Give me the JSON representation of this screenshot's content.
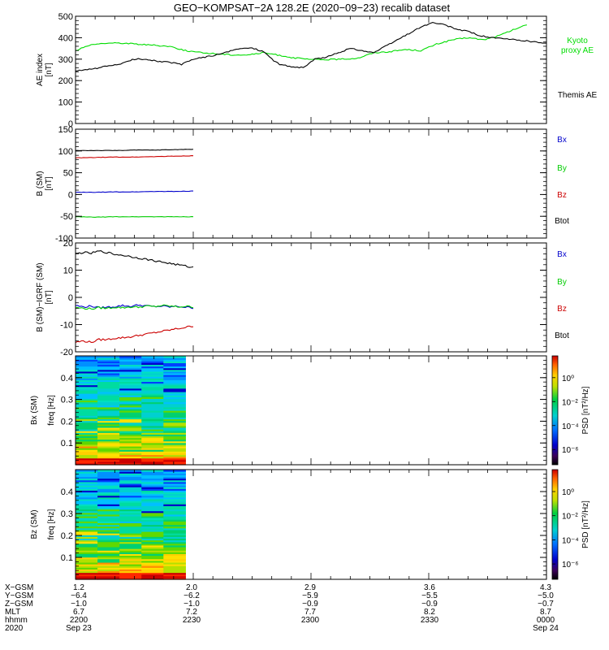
{
  "figure": {
    "title": "GEO−KOMPSAT−2A 128.2E (2020−09−23) recalib dataset"
  },
  "chart_data": [
    {
      "type": "line",
      "panel": "ae",
      "ylabel": [
        "AE index",
        "[nT]"
      ],
      "ylim": [
        0,
        500
      ],
      "yticks": [
        0,
        100,
        200,
        300,
        400,
        500
      ],
      "xlim_minutes": [
        0,
        120
      ],
      "legend": [
        "Kyoto",
        "proxy AE",
        "Themis AE"
      ],
      "series": [
        {
          "name": "Kyoto proxy AE",
          "color": "#00dd00",
          "x": [
            0,
            2,
            5,
            8,
            12,
            16,
            20,
            24,
            28,
            32,
            36,
            40,
            44,
            48,
            52,
            56,
            60,
            64,
            68,
            72,
            76,
            80,
            84,
            88,
            92,
            96,
            100,
            104,
            108,
            112,
            115
          ],
          "y": [
            340,
            355,
            370,
            375,
            375,
            370,
            365,
            360,
            340,
            330,
            325,
            320,
            320,
            330,
            318,
            305,
            298,
            298,
            300,
            305,
            330,
            335,
            345,
            340,
            370,
            390,
            400,
            390,
            410,
            440,
            460
          ]
        },
        {
          "name": "Themis AE",
          "color": "#000000",
          "x": [
            0,
            3,
            6,
            9,
            12,
            15,
            18,
            21,
            24,
            27,
            30,
            33,
            36,
            39,
            42,
            45,
            48,
            50,
            52,
            55,
            58,
            61,
            64,
            67,
            70,
            73,
            76,
            79,
            82,
            85,
            88,
            91,
            94,
            97,
            100,
            103,
            106,
            109,
            112,
            115,
            118,
            120
          ],
          "y": [
            245,
            250,
            260,
            270,
            280,
            300,
            300,
            290,
            285,
            275,
            300,
            310,
            320,
            335,
            350,
            352,
            335,
            300,
            275,
            265,
            260,
            300,
            310,
            330,
            350,
            340,
            330,
            360,
            390,
            420,
            450,
            470,
            460,
            440,
            430,
            410,
            400,
            395,
            390,
            385,
            378,
            372
          ]
        }
      ]
    },
    {
      "type": "line",
      "panel": "b_sm",
      "ylabel": [
        "B (SM)",
        "[nT]"
      ],
      "ylim": [
        -100,
        150
      ],
      "yticks": [
        -100,
        -50,
        0,
        50,
        100,
        150
      ],
      "xlim_minutes": [
        0,
        120
      ],
      "legend": [
        "Bx",
        "By",
        "Bz",
        "Btot"
      ],
      "series": [
        {
          "name": "Btot",
          "color": "#000000",
          "x": [
            0,
            5,
            10,
            15,
            20,
            25,
            30
          ],
          "y": [
            101,
            101,
            101,
            102,
            102,
            103,
            104
          ]
        },
        {
          "name": "Bz",
          "color": "#cc0000",
          "x": [
            0,
            5,
            10,
            15,
            20,
            25,
            30
          ],
          "y": [
            84,
            85,
            86,
            86,
            87,
            88,
            89
          ]
        },
        {
          "name": "Bx",
          "color": "#0000cc",
          "x": [
            0,
            5,
            10,
            15,
            20,
            25,
            30
          ],
          "y": [
            5,
            5,
            6,
            6,
            7,
            7,
            8
          ]
        },
        {
          "name": "By",
          "color": "#00cc00",
          "x": [
            0,
            5,
            10,
            15,
            20,
            25,
            30
          ],
          "y": [
            -51,
            -52,
            -51,
            -51,
            -51,
            -51,
            -51
          ]
        }
      ]
    },
    {
      "type": "line",
      "panel": "b_igrf",
      "ylabel": [
        "B (SM)−IGRF (SM)",
        "[nT]"
      ],
      "ylim": [
        -20,
        20
      ],
      "yticks": [
        -20,
        -10,
        0,
        10,
        20
      ],
      "xlim_minutes": [
        0,
        120
      ],
      "legend": [
        "Bx",
        "By",
        "Bz",
        "Btot"
      ],
      "series": [
        {
          "name": "Btot",
          "color": "#000000",
          "x": [
            0,
            2,
            4,
            6,
            8,
            10,
            12,
            14,
            16,
            18,
            20,
            22,
            24,
            26,
            28,
            30
          ],
          "y": [
            16,
            16.5,
            16.2,
            17,
            16.5,
            15.8,
            15.5,
            15,
            14.5,
            14,
            13.5,
            13,
            12.5,
            12,
            11.5,
            11
          ]
        },
        {
          "name": "Bz",
          "color": "#cc0000",
          "x": [
            0,
            2,
            4,
            6,
            8,
            10,
            12,
            14,
            16,
            18,
            20,
            22,
            24,
            26,
            28,
            30
          ],
          "y": [
            -16.5,
            -16,
            -16.5,
            -15.5,
            -15.5,
            -15,
            -14.8,
            -14.5,
            -14,
            -13.5,
            -13,
            -12.5,
            -12,
            -11.5,
            -11,
            -10.5
          ]
        },
        {
          "name": "Bx",
          "color": "#0000cc",
          "x": [
            0,
            2,
            4,
            6,
            8,
            10,
            12,
            14,
            16,
            18,
            20,
            22,
            24,
            26,
            28,
            30
          ],
          "y": [
            -3,
            -3.5,
            -3.2,
            -3.8,
            -3.6,
            -3.4,
            -3,
            -3.3,
            -2.8,
            -3.1,
            -3.4,
            -3.2,
            -3.5,
            -3.3,
            -3.6,
            -3.8
          ]
        },
        {
          "name": "By",
          "color": "#00cc00",
          "x": [
            0,
            2,
            4,
            6,
            8,
            10,
            12,
            14,
            16,
            18,
            20,
            22,
            24,
            26,
            28,
            30
          ],
          "y": [
            -3.8,
            -4,
            -4.2,
            -3.8,
            -4,
            -3.6,
            -3.8,
            -3.5,
            -3.6,
            -3.2,
            -3.4,
            -3,
            -3.2,
            -3.5,
            -3.3,
            -3.5
          ]
        }
      ]
    },
    {
      "type": "heatmap",
      "panel": "bx_psd",
      "ylabel": [
        "Bx (SM)",
        "freq [Hz]"
      ],
      "ylim": [
        0,
        0.5
      ],
      "yticks": [
        0.1,
        0.2,
        0.3,
        0.4
      ],
      "xlim_minutes": [
        0,
        120
      ],
      "data_extent_minutes": [
        0,
        28
      ],
      "colorbar": {
        "label": "PSD [nT²/Hz]",
        "ticks": [
          "10⁰",
          "10⁻²",
          "10⁻⁴",
          "10⁻⁶"
        ]
      }
    },
    {
      "type": "heatmap",
      "panel": "bz_psd",
      "ylabel": [
        "Bz (SM)",
        "freq [Hz]"
      ],
      "ylim": [
        0,
        0.5
      ],
      "yticks": [
        0.1,
        0.2,
        0.3,
        0.4
      ],
      "xlim_minutes": [
        0,
        120
      ],
      "data_extent_minutes": [
        0,
        28
      ],
      "colorbar": {
        "label": "PSD [nT²/Hz]",
        "ticks": [
          "10⁰",
          "10⁻²",
          "10⁻⁴",
          "10⁻⁶"
        ]
      }
    }
  ],
  "orbit_table": {
    "row_labels": [
      "X−GSM",
      "Y−GSM",
      "Z−GSM",
      "MLT",
      "hhmm",
      "2020"
    ],
    "columns": [
      [
        "1.2",
        "−6.4",
        "−1.0",
        "6.7",
        "2200",
        "Sep 23"
      ],
      [
        "2.0",
        "−6.2",
        "−1.0",
        "7.2",
        "2230",
        ""
      ],
      [
        "2.9",
        "−5.9",
        "−0.9",
        "7.7",
        "2300",
        ""
      ],
      [
        "3.6",
        "−5.5",
        "−0.9",
        "8.2",
        "2330",
        ""
      ],
      [
        "4.3",
        "−5.0",
        "−0.7",
        "8.7",
        "0000",
        "Sep 24"
      ]
    ]
  }
}
